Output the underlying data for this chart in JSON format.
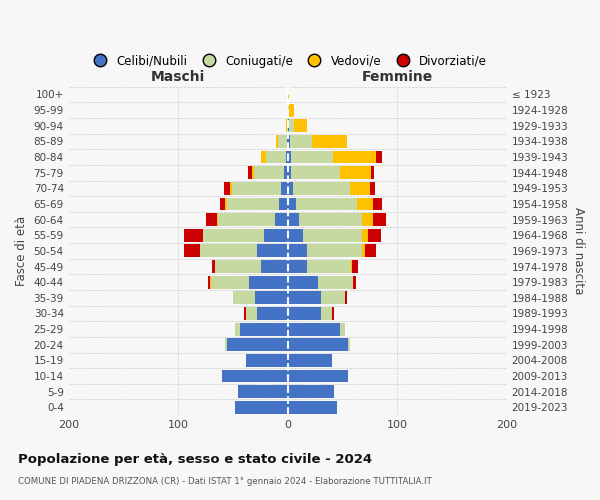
{
  "age_groups": [
    "0-4",
    "5-9",
    "10-14",
    "15-19",
    "20-24",
    "25-29",
    "30-34",
    "35-39",
    "40-44",
    "45-49",
    "50-54",
    "55-59",
    "60-64",
    "65-69",
    "70-74",
    "75-79",
    "80-84",
    "85-89",
    "90-94",
    "95-99",
    "100+"
  ],
  "birth_years": [
    "2019-2023",
    "2014-2018",
    "2009-2013",
    "2004-2008",
    "1999-2003",
    "1994-1998",
    "1989-1993",
    "1984-1988",
    "1979-1983",
    "1974-1978",
    "1969-1973",
    "1964-1968",
    "1959-1963",
    "1954-1958",
    "1949-1953",
    "1944-1948",
    "1939-1943",
    "1934-1938",
    "1929-1933",
    "1924-1928",
    "≤ 1923"
  ],
  "colors": {
    "celibi": "#4472c4",
    "coniugati": "#c5d9a0",
    "vedovi": "#ffc000",
    "divorziati": "#cc0000"
  },
  "males": {
    "celibi": [
      48,
      45,
      60,
      38,
      55,
      44,
      28,
      30,
      35,
      24,
      28,
      22,
      12,
      8,
      6,
      3,
      2,
      1,
      0,
      0,
      0
    ],
    "coniugati": [
      0,
      0,
      0,
      0,
      2,
      4,
      10,
      20,
      35,
      42,
      52,
      55,
      52,
      47,
      45,
      28,
      18,
      8,
      1,
      0,
      0
    ],
    "vedovi": [
      0,
      0,
      0,
      0,
      0,
      0,
      0,
      0,
      1,
      0,
      0,
      0,
      1,
      2,
      2,
      2,
      4,
      2,
      1,
      0,
      0
    ],
    "divorziati": [
      0,
      0,
      0,
      0,
      0,
      0,
      2,
      0,
      2,
      3,
      15,
      18,
      10,
      5,
      5,
      3,
      0,
      0,
      0,
      0,
      0
    ]
  },
  "females": {
    "celibi": [
      45,
      42,
      55,
      40,
      55,
      48,
      30,
      30,
      28,
      18,
      18,
      14,
      10,
      8,
      5,
      3,
      3,
      2,
      1,
      0,
      0
    ],
    "coniugati": [
      0,
      0,
      0,
      0,
      2,
      4,
      10,
      22,
      32,
      40,
      50,
      54,
      58,
      55,
      52,
      45,
      38,
      20,
      5,
      1,
      0
    ],
    "vedovi": [
      0,
      0,
      0,
      0,
      0,
      0,
      0,
      0,
      0,
      1,
      3,
      5,
      10,
      15,
      18,
      28,
      40,
      32,
      12,
      5,
      1
    ],
    "divorziati": [
      0,
      0,
      0,
      0,
      0,
      0,
      2,
      2,
      2,
      5,
      10,
      12,
      12,
      8,
      5,
      3,
      5,
      0,
      0,
      0,
      0
    ]
  },
  "title": "Popolazione per età, sesso e stato civile - 2024",
  "subtitle": "COMUNE DI PIADENA DRIZZONA (CR) - Dati ISTAT 1° gennaio 2024 - Elaborazione TUTTITALIA.IT",
  "xlabel_left": "Maschi",
  "xlabel_right": "Femmine",
  "ylabel_left": "Fasce di età",
  "ylabel_right": "Anni di nascita",
  "xlim": 200,
  "bg_color": "#f7f7f7",
  "grid_color": "#bbbbbb",
  "legend_labels": [
    "Celibi/Nubili",
    "Coniugati/e",
    "Vedovi/e",
    "Divorziati/e"
  ]
}
